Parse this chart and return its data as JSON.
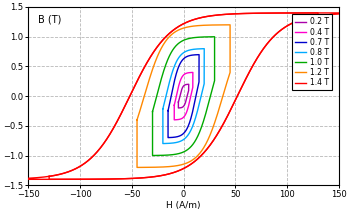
{
  "xlabel": "H (A/m)",
  "ylabel": "B (T)",
  "xlim": [
    -150,
    150
  ],
  "ylim": [
    -1.5,
    1.5
  ],
  "xticks": [
    -150,
    -100,
    -50,
    0,
    50,
    100,
    150
  ],
  "yticks": [
    -1.5,
    -1.0,
    -0.5,
    0,
    0.5,
    1.0,
    1.5
  ],
  "background_color": "#ffffff",
  "grid_color": "#b0b0b0",
  "curves": [
    {
      "label": "1.4 T",
      "color": "#ff0000",
      "Bmax": 1.4,
      "Hsat": 130,
      "Hc": 52,
      "k": 0.3
    },
    {
      "label": "1.2 T",
      "color": "#ff8800",
      "Bmax": 1.2,
      "Hsat": 45,
      "Hc": 38,
      "k": 0.45
    },
    {
      "label": "1.0 T",
      "color": "#00aa00",
      "Bmax": 1.0,
      "Hsat": 30,
      "Hc": 26,
      "k": 0.5
    },
    {
      "label": "0.8 T",
      "color": "#00aaff",
      "Bmax": 0.8,
      "Hsat": 20,
      "Hc": 17,
      "k": 0.55
    },
    {
      "label": "0.7 T",
      "color": "#0000cc",
      "Bmax": 0.7,
      "Hsat": 15,
      "Hc": 12,
      "k": 0.55
    },
    {
      "label": "0.4 T",
      "color": "#ff00cc",
      "Bmax": 0.4,
      "Hsat": 9,
      "Hc": 7,
      "k": 0.55
    },
    {
      "label": "0.2 T",
      "color": "#aa00aa",
      "Bmax": 0.2,
      "Hsat": 5,
      "Hc": 3.5,
      "k": 0.55
    }
  ]
}
